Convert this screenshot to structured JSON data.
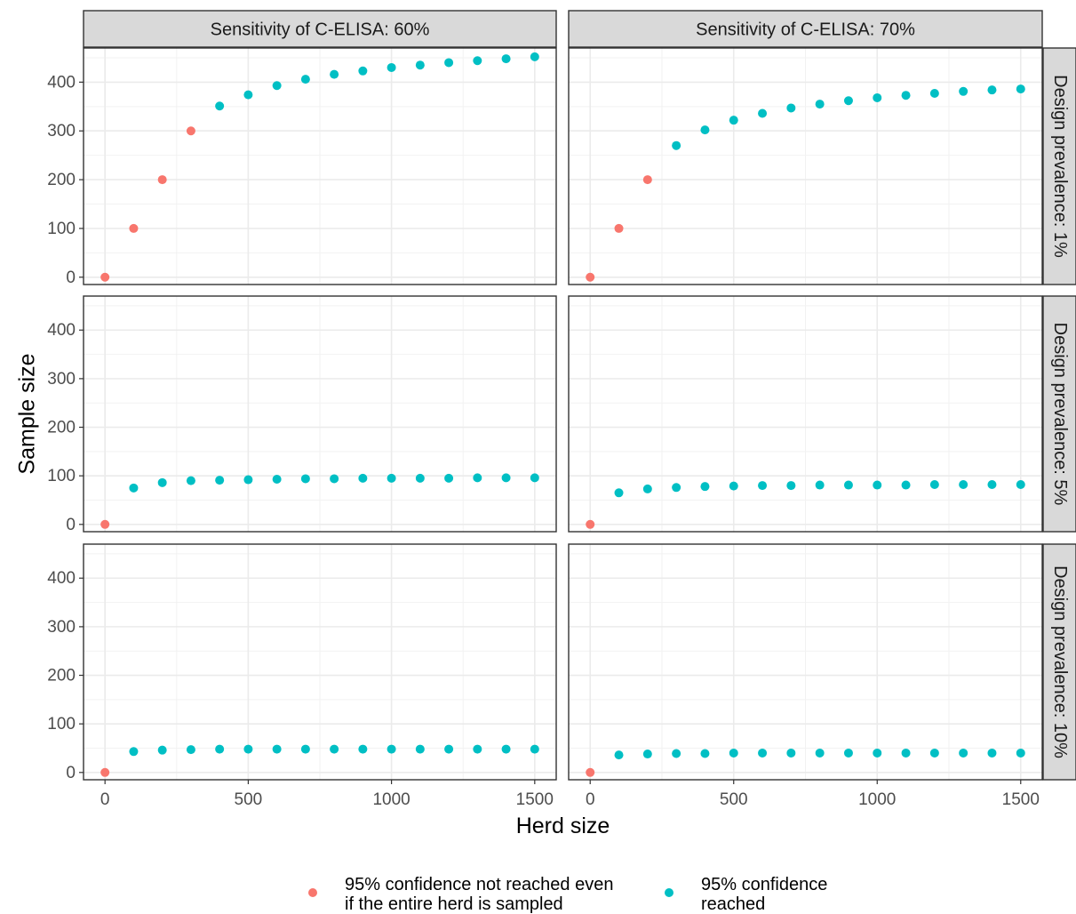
{
  "chart_data": {
    "type": "scatter",
    "facet_columns": [
      "Sensitivity of C-ELISA: 60%",
      "Sensitivity of C-ELISA: 70%"
    ],
    "facet_rows": [
      "Design prevalence: 1%",
      "Design prevalence: 5%",
      "Design prevalence: 10%"
    ],
    "xlabel": "Herd size",
    "ylabel": "Sample size",
    "xlim": [
      -75,
      1575
    ],
    "ylim": [
      -15,
      470
    ],
    "x_ticks": [
      0,
      500,
      1000,
      1500
    ],
    "y_ticks": [
      0,
      100,
      200,
      300,
      400
    ],
    "grid": true,
    "legend_position": "bottom",
    "series": [
      {
        "name": "95% confidence not reached even\nif the entire herd is sampled",
        "color": "#F8766D"
      },
      {
        "name": "95% confidence\nreached",
        "color": "#00BFC4"
      }
    ],
    "panels": [
      {
        "col": 0,
        "row": 0,
        "not_reached": [
          [
            0,
            0
          ],
          [
            100,
            100
          ],
          [
            200,
            200
          ],
          [
            300,
            300
          ]
        ],
        "reached": [
          [
            400,
            351
          ],
          [
            500,
            374
          ],
          [
            600,
            393
          ],
          [
            700,
            406
          ],
          [
            800,
            416
          ],
          [
            900,
            423
          ],
          [
            1000,
            430
          ],
          [
            1100,
            435
          ],
          [
            1200,
            440
          ],
          [
            1300,
            444
          ],
          [
            1400,
            448
          ],
          [
            1500,
            452
          ]
        ]
      },
      {
        "col": 1,
        "row": 0,
        "not_reached": [
          [
            0,
            0
          ],
          [
            100,
            100
          ],
          [
            200,
            200
          ]
        ],
        "reached": [
          [
            300,
            270
          ],
          [
            400,
            302
          ],
          [
            500,
            322
          ],
          [
            600,
            336
          ],
          [
            700,
            347
          ],
          [
            800,
            355
          ],
          [
            900,
            362
          ],
          [
            1000,
            368
          ],
          [
            1100,
            373
          ],
          [
            1200,
            377
          ],
          [
            1300,
            381
          ],
          [
            1400,
            384
          ],
          [
            1500,
            386
          ]
        ]
      },
      {
        "col": 0,
        "row": 1,
        "not_reached": [
          [
            0,
            0
          ]
        ],
        "reached": [
          [
            100,
            75
          ],
          [
            200,
            86
          ],
          [
            300,
            90
          ],
          [
            400,
            91
          ],
          [
            500,
            92
          ],
          [
            600,
            93
          ],
          [
            700,
            94
          ],
          [
            800,
            94
          ],
          [
            900,
            95
          ],
          [
            1000,
            95
          ],
          [
            1100,
            95
          ],
          [
            1200,
            95
          ],
          [
            1300,
            96
          ],
          [
            1400,
            96
          ],
          [
            1500,
            96
          ]
        ]
      },
      {
        "col": 1,
        "row": 1,
        "not_reached": [
          [
            0,
            0
          ]
        ],
        "reached": [
          [
            100,
            65
          ],
          [
            200,
            73
          ],
          [
            300,
            76
          ],
          [
            400,
            78
          ],
          [
            500,
            79
          ],
          [
            600,
            80
          ],
          [
            700,
            80
          ],
          [
            800,
            81
          ],
          [
            900,
            81
          ],
          [
            1000,
            81
          ],
          [
            1100,
            81
          ],
          [
            1200,
            82
          ],
          [
            1300,
            82
          ],
          [
            1400,
            82
          ],
          [
            1500,
            82
          ]
        ]
      },
      {
        "col": 0,
        "row": 2,
        "not_reached": [
          [
            0,
            0
          ]
        ],
        "reached": [
          [
            100,
            43
          ],
          [
            200,
            46
          ],
          [
            300,
            47
          ],
          [
            400,
            48
          ],
          [
            500,
            48
          ],
          [
            600,
            48
          ],
          [
            700,
            48
          ],
          [
            800,
            48
          ],
          [
            900,
            48
          ],
          [
            1000,
            48
          ],
          [
            1100,
            48
          ],
          [
            1200,
            48
          ],
          [
            1300,
            48
          ],
          [
            1400,
            48
          ],
          [
            1500,
            48
          ]
        ]
      },
      {
        "col": 1,
        "row": 2,
        "not_reached": [
          [
            0,
            0
          ]
        ],
        "reached": [
          [
            100,
            36
          ],
          [
            200,
            38
          ],
          [
            300,
            39
          ],
          [
            400,
            39
          ],
          [
            500,
            40
          ],
          [
            600,
            40
          ],
          [
            700,
            40
          ],
          [
            800,
            40
          ],
          [
            900,
            40
          ],
          [
            1000,
            40
          ],
          [
            1100,
            40
          ],
          [
            1200,
            40
          ],
          [
            1300,
            40
          ],
          [
            1400,
            40
          ],
          [
            1500,
            40
          ]
        ]
      }
    ]
  }
}
